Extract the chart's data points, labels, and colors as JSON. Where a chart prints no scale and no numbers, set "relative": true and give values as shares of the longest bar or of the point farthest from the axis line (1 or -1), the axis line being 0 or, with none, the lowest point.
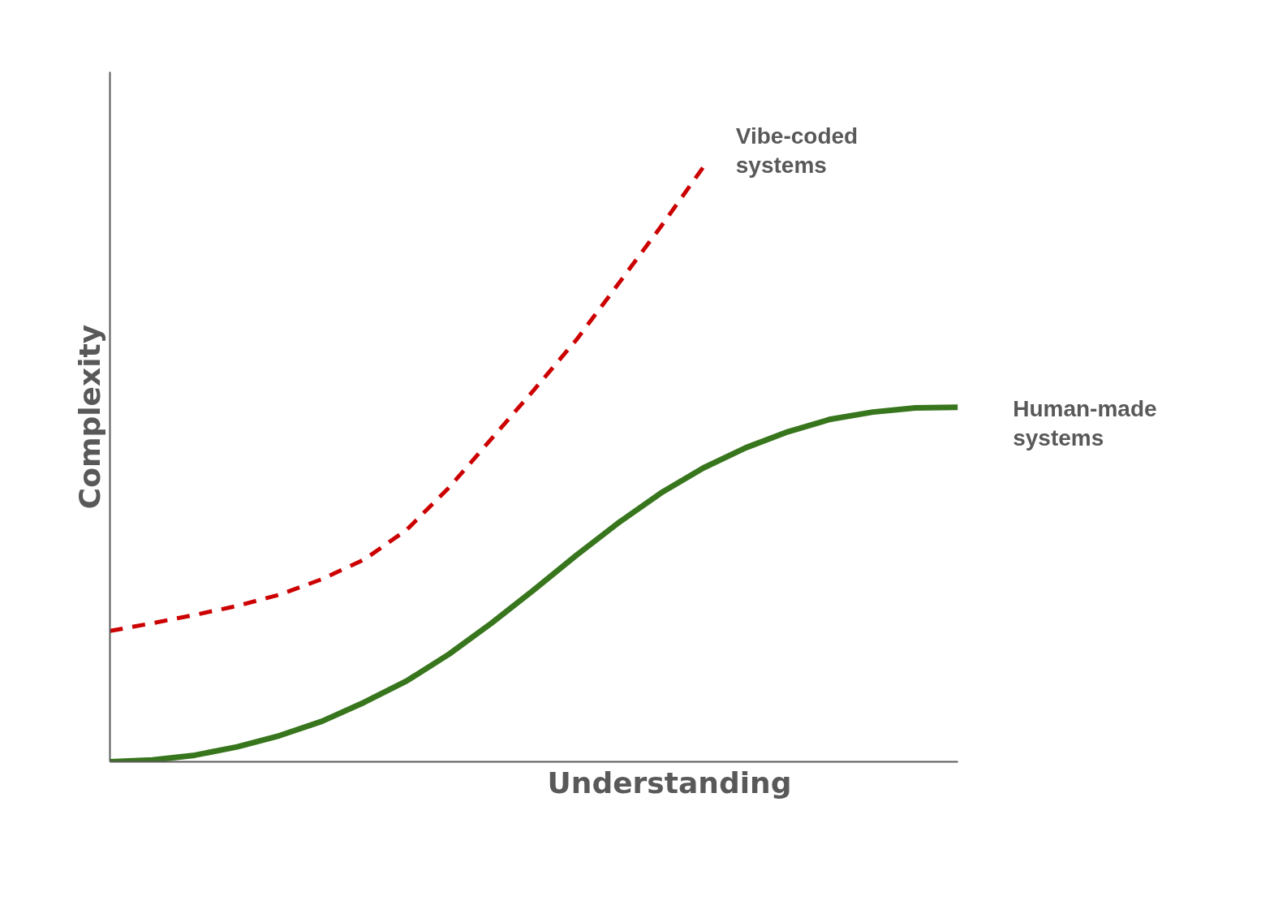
{
  "chart_data": {
    "type": "line",
    "relative": true,
    "xlabel": "Understanding",
    "ylabel": "Complexity",
    "tick_labels": false,
    "marker": "none",
    "categories": [
      null,
      null,
      null,
      null,
      null,
      null,
      null,
      null,
      null,
      null,
      null,
      null,
      null,
      null,
      null,
      null,
      null,
      null,
      null,
      null,
      null
    ],
    "series": [
      {
        "name": "Vibe-coded systems",
        "color": "#cc0000",
        "line_style": "dashed",
        "values": [
          0.22,
          0.233,
          0.247,
          0.262,
          0.281,
          0.307,
          0.34,
          0.39,
          0.461,
          0.543,
          0.625,
          0.709,
          0.804,
          0.9,
          1.0,
          null,
          null,
          null,
          null,
          null,
          null
        ]
      },
      {
        "name": "Human-made systems",
        "color": "#38761d",
        "line_style": "solid",
        "values": [
          0,
          0.003,
          0.011,
          0.025,
          0.044,
          0.068,
          0.1,
          0.136,
          0.181,
          0.233,
          0.289,
          0.347,
          0.402,
          0.452,
          0.494,
          0.528,
          0.555,
          0.576,
          0.588,
          0.595,
          0.596
        ]
      }
    ]
  }
}
